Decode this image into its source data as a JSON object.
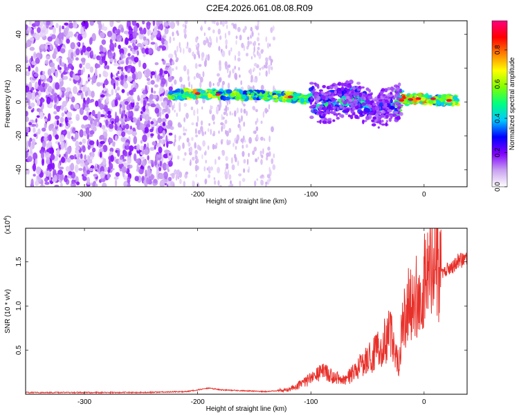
{
  "title": "C2E4.2026.061.08.08.R09",
  "chart_data": [
    {
      "type": "heatmap",
      "xlabel": "Height of straight line (km)",
      "ylabel": "Frequency (Hz)",
      "xlim": [
        -352,
        38
      ],
      "ylim": [
        -50,
        48
      ],
      "x_ticks": [
        -300,
        -200,
        -100,
        0
      ],
      "y_ticks": [
        -40,
        -20,
        0,
        20,
        40
      ],
      "colorbar": {
        "label": "Normalized spectral amplitude",
        "range": [
          0,
          0.97
        ],
        "ticks": [
          0.0,
          0.2,
          0.4,
          0.6,
          0.8
        ],
        "tick_labels": [
          "0.0",
          "0.2",
          "0.4",
          "0.6",
          "0.8"
        ],
        "colors": [
          "#ffffff",
          "#c8a0f0",
          "#8000ff",
          "#0000ff",
          "#00c8ff",
          "#00ff80",
          "#80ff00",
          "#ffff00",
          "#ff8000",
          "#ff0000",
          "#ff0080"
        ]
      },
      "ridge": [
        {
          "x": -225,
          "y": 4,
          "v": 0.55
        },
        {
          "x": -200,
          "y": 5,
          "v": 0.75
        },
        {
          "x": -180,
          "y": 4.5,
          "v": 0.6
        },
        {
          "x": -160,
          "y": 4,
          "v": 0.6
        },
        {
          "x": -140,
          "y": 3.5,
          "v": 0.55
        },
        {
          "x": -120,
          "y": 3,
          "v": 0.7
        },
        {
          "x": -100,
          "y": 2,
          "v": 0.55
        },
        {
          "x": -90,
          "y": -2,
          "v": 0.5
        },
        {
          "x": -80,
          "y": 0,
          "v": 0.45
        },
        {
          "x": -60,
          "y": 2,
          "v": 0.5
        },
        {
          "x": -45,
          "y": -5,
          "v": 0.35
        },
        {
          "x": -30,
          "y": -2,
          "v": 0.3
        },
        {
          "x": -20,
          "y": 1,
          "v": 0.85
        },
        {
          "x": -5,
          "y": 2,
          "v": 0.8
        },
        {
          "x": 10,
          "y": 1,
          "v": 0.65
        },
        {
          "x": 30,
          "y": 1,
          "v": 0.75
        }
      ]
    },
    {
      "type": "line",
      "xlabel": "Height of straight line (km)",
      "ylabel": "SNR (10 * v/v)",
      "y_multiplier": "(x10",
      "y_multiplier_exp": "4",
      "y_multiplier_close": ")",
      "xlim": [
        -352,
        38
      ],
      "ylim": [
        0,
        18800
      ],
      "x_ticks": [
        -300,
        -200,
        -100,
        0
      ],
      "y_ticks": [
        5000,
        10000,
        15000
      ],
      "y_tick_labels": [
        "0.5",
        "1.0",
        "1.5"
      ],
      "color": "#e8302a",
      "series": [
        {
          "x": [
            -352,
            -300,
            -250,
            -210,
            -200,
            -190,
            -180,
            -160,
            -140,
            -120,
            -110,
            -100,
            -90,
            -80,
            -70,
            -60,
            -50,
            -40,
            -30,
            -22,
            -20,
            -15,
            -10,
            -5,
            0,
            5,
            8,
            10,
            12,
            15,
            20,
            25,
            30,
            38
          ],
          "y": [
            200,
            200,
            200,
            300,
            500,
            700,
            500,
            400,
            300,
            500,
            1100,
            1700,
            2500,
            2000,
            1500,
            2800,
            4000,
            5000,
            7000,
            3500,
            7500,
            10000,
            10000,
            11500,
            12500,
            14000,
            16000,
            18800,
            15000,
            13500,
            14200,
            14500,
            15100,
            15300
          ]
        }
      ]
    }
  ]
}
